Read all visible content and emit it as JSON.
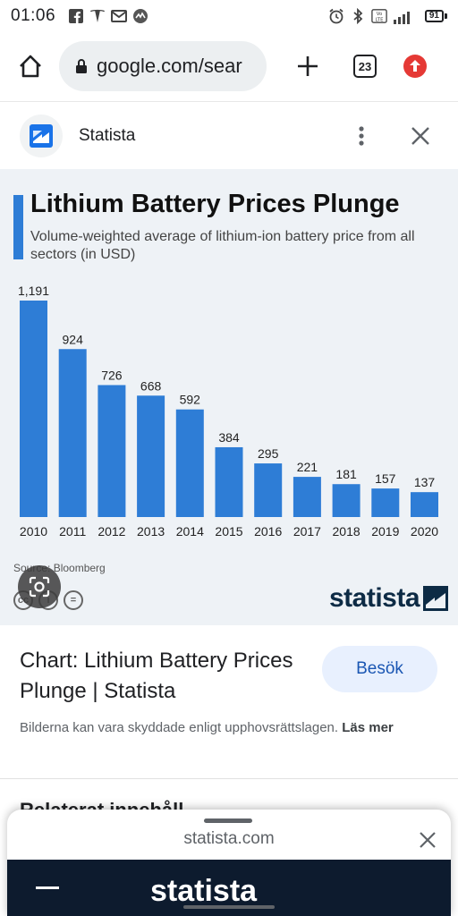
{
  "status_bar": {
    "time": "01:06",
    "network": "4G",
    "battery": "91"
  },
  "browser": {
    "url": "google.com/sear",
    "tab_count": "23"
  },
  "source_header": {
    "name": "Statista"
  },
  "chart_data": {
    "type": "bar",
    "title": "Lithium Battery Prices Plunge",
    "subtitle": "Volume-weighted average of lithium-ion battery price from all sectors (in USD)",
    "categories": [
      "2010",
      "2011",
      "2012",
      "2013",
      "2014",
      "2015",
      "2016",
      "2017",
      "2018",
      "2019",
      "2020"
    ],
    "values": [
      1191,
      924,
      726,
      668,
      592,
      384,
      295,
      221,
      181,
      157,
      137
    ],
    "value_labels": [
      "1,191",
      "924",
      "726",
      "668",
      "592",
      "384",
      "295",
      "221",
      "181",
      "157",
      "137"
    ],
    "ylim": [
      0,
      1191
    ],
    "grid": false,
    "bar_color": "#2e7dd6",
    "source": "Source: Bloomberg",
    "brand": "statista"
  },
  "result": {
    "title": "Chart: Lithium Battery Prices Plunge | Statista",
    "visit_label": "Besök",
    "copyright_text": "Bilderna kan vara skyddade enligt upphovsrättslagen.",
    "read_more": "Läs mer",
    "peek_text": "Relaterat innehåll"
  },
  "bottom_sheet": {
    "title": "statista.com",
    "preview_brand": "statista"
  },
  "colors": {
    "accent": "#2e7dd6",
    "visit_bg": "#e8f0fe",
    "visit_text": "#1a56b3",
    "chart_bg": "#eef2f6",
    "brand_dark": "#0d2b45"
  }
}
